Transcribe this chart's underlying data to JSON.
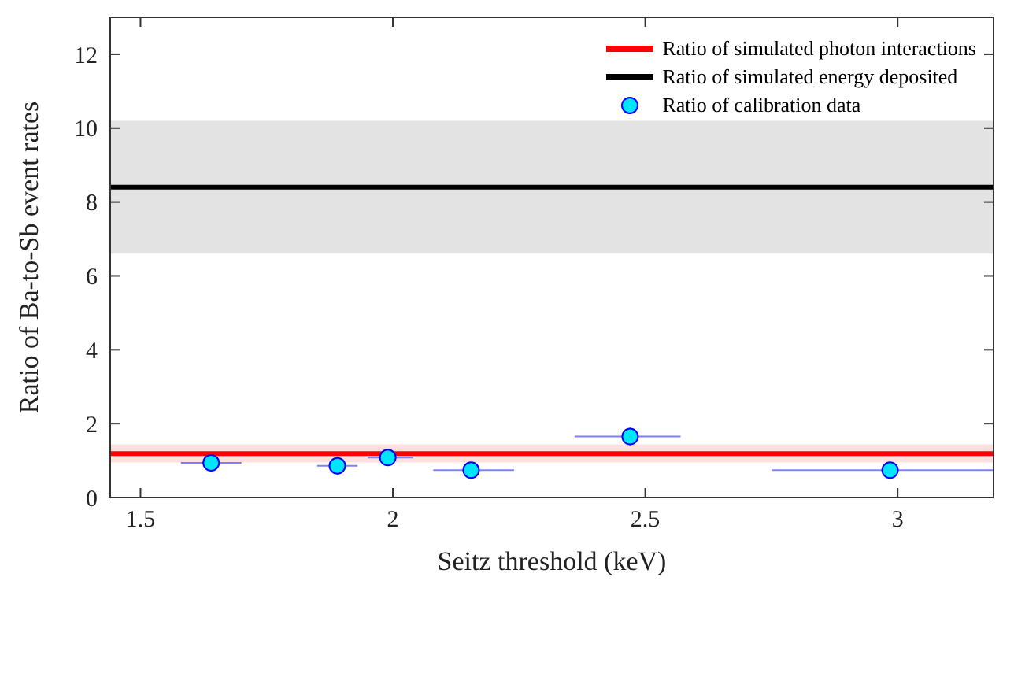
{
  "chart_data": {
    "type": "line",
    "xlabel": "Seitz threshold (keV)",
    "ylabel": "Ratio of Ba-to-Sb event  rates",
    "xlim": [
      1.44,
      3.19
    ],
    "xticks": [
      1.5,
      2,
      2.5,
      3
    ],
    "ylim": [
      0,
      13
    ],
    "yticks": [
      0,
      2,
      4,
      6,
      8,
      10,
      12
    ],
    "grid": false,
    "legend": "top right",
    "series": [
      {
        "name": "Ratio of simulated photon interactions",
        "color": "#ff0000",
        "x": [
          1.44,
          3.19
        ],
        "values": [
          1.19,
          1.19
        ],
        "lower": [
          0.95,
          0.95
        ],
        "upper": [
          1.44,
          1.44
        ]
      },
      {
        "name": "Ratio of simulated energy deposited",
        "color": "#000000",
        "x": [
          1.44,
          3.19
        ],
        "values": [
          8.4,
          8.4
        ],
        "lower": [
          6.6,
          6.6
        ],
        "upper": [
          10.2,
          10.2
        ]
      },
      {
        "name": "Ratio of calibration data",
        "type": "scatter",
        "marker": "circle",
        "color": "#00e5ff",
        "x": [
          1.64,
          1.89,
          1.99,
          2.155,
          2.47,
          2.985
        ],
        "values": [
          0.94,
          0.86,
          1.08,
          0.74,
          1.65,
          0.74
        ],
        "errors": [
          0.1,
          0.26,
          0.18,
          0.1,
          0.25,
          0.1
        ],
        "xerrors": [
          [
            1.58,
            1.7
          ],
          [
            1.85,
            1.93
          ],
          [
            1.95,
            2.04
          ],
          [
            2.08,
            2.24
          ],
          [
            2.36,
            2.57
          ],
          [
            2.75,
            3.19
          ]
        ]
      }
    ]
  }
}
